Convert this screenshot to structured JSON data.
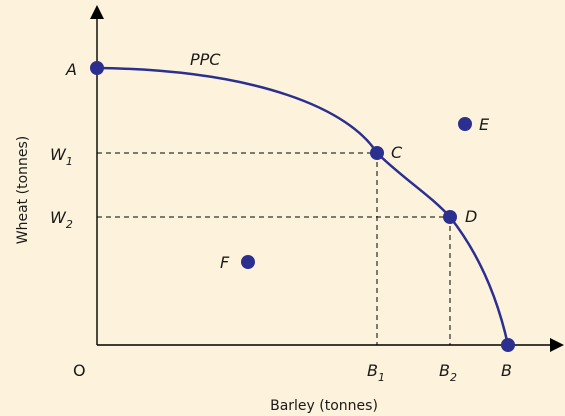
{
  "diagram": {
    "title": "",
    "curve_label": "PPC",
    "x_axis_title": "Barley (tonnes)",
    "y_axis_title": "Wheat (tonnes)",
    "origin_label": "O",
    "points": {
      "A": {
        "letter": "A"
      },
      "B": {
        "letter": "B"
      },
      "C": {
        "letter": "C"
      },
      "D": {
        "letter": "D"
      },
      "E": {
        "letter": "E"
      },
      "F": {
        "letter": "F"
      }
    },
    "x_ticks": {
      "b1": {
        "base": "B",
        "sub": "1"
      },
      "b2": {
        "base": "B",
        "sub": "2"
      }
    },
    "y_ticks": {
      "w1": {
        "base": "W",
        "sub": "1"
      },
      "w2": {
        "base": "W",
        "sub": "2"
      }
    },
    "colors": {
      "curve": "#2b2f8f",
      "point": "#2b2f8f",
      "background": "#fdf3dc",
      "axis": "#000000"
    }
  }
}
